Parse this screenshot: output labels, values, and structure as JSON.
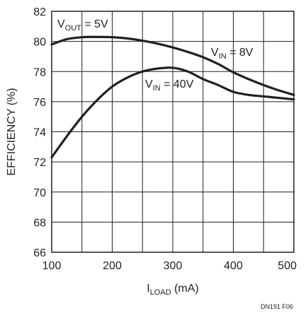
{
  "chart_data": {
    "type": "line",
    "xlabel": "I",
    "xlabel_sub": "LOAD",
    "xlabel_unit": " (mA)",
    "ylabel": "EFFICIENCY (%)",
    "xlim": [
      100,
      500
    ],
    "ylim": [
      66,
      82
    ],
    "xticks": [
      100,
      200,
      300,
      400,
      500
    ],
    "yticks": [
      66,
      68,
      70,
      72,
      74,
      76,
      78,
      80,
      82
    ],
    "grid": true,
    "annotation": {
      "main": "V",
      "sub": "OUT",
      "rest": " = 5V"
    },
    "figure_id": "DN191 F06",
    "series": [
      {
        "label": {
          "main": "V",
          "sub": "IN",
          "rest": " = 8V"
        },
        "x": [
          100,
          125,
          150,
          175,
          200,
          225,
          250,
          275,
          300,
          325,
          350,
          375,
          400,
          425,
          450,
          475,
          500
        ],
        "y": [
          79.8,
          80.15,
          80.28,
          80.3,
          80.28,
          80.2,
          80.05,
          79.85,
          79.6,
          79.3,
          78.95,
          78.5,
          77.95,
          77.5,
          77.1,
          76.75,
          76.45
        ]
      },
      {
        "label": {
          "main": "V",
          "sub": "IN",
          "rest": " = 40V"
        },
        "x": [
          100,
          125,
          150,
          175,
          200,
          225,
          250,
          275,
          300,
          325,
          350,
          375,
          400,
          425,
          450,
          475,
          500
        ],
        "y": [
          72.3,
          73.7,
          75.0,
          76.1,
          77.0,
          77.6,
          78.0,
          78.2,
          78.25,
          78.0,
          77.5,
          77.1,
          76.65,
          76.45,
          76.35,
          76.25,
          76.15
        ]
      }
    ]
  }
}
